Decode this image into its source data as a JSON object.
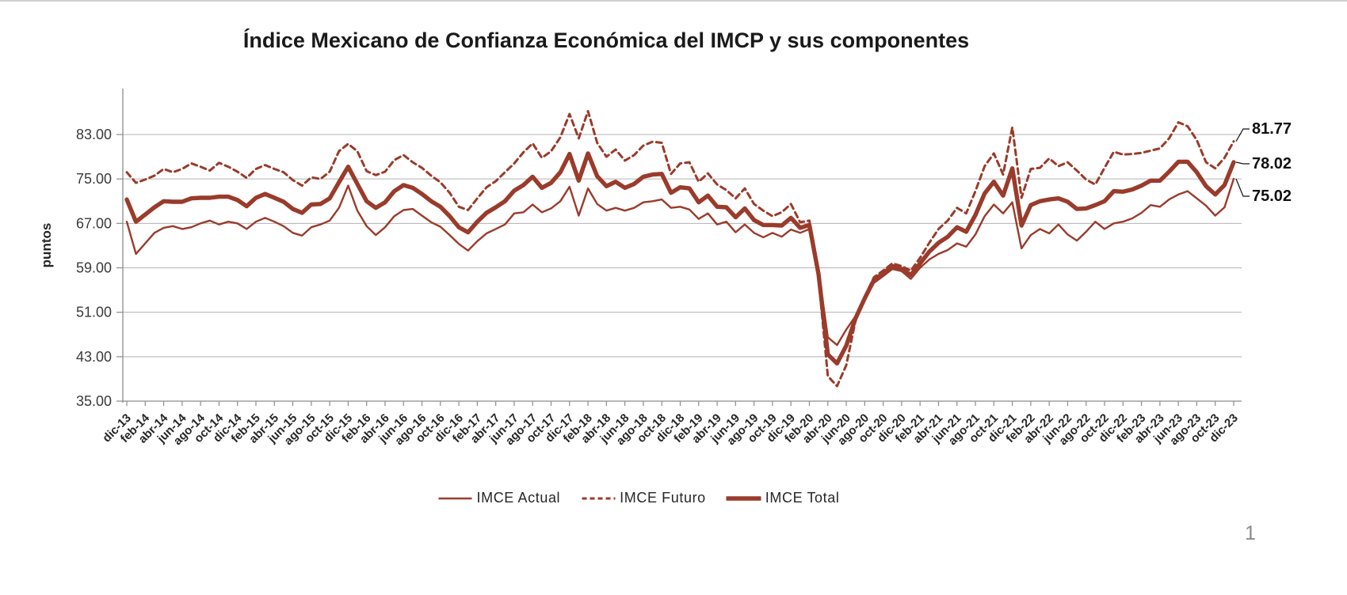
{
  "slide": {
    "page_number": "1"
  },
  "chart_data": {
    "type": "line",
    "title": "Índice Mexicano de Confianza Económica del IMCP y sus componentes",
    "ylabel": "puntos",
    "ylim": [
      35,
      83
    ],
    "yticks": [
      35,
      43,
      51,
      59,
      67,
      75,
      83
    ],
    "ytick_labels": [
      "35.00",
      "43.00",
      "51.00",
      "59.00",
      "67.00",
      "75.00",
      "83.00"
    ],
    "grid": true,
    "legend_position": "bottom",
    "color": "#9A3B2B",
    "xtick_every": 2,
    "categories": [
      "dic-13",
      "ene-14",
      "feb-14",
      "mar-14",
      "abr-14",
      "may-14",
      "jun-14",
      "jul-14",
      "ago-14",
      "sep-14",
      "oct-14",
      "nov-14",
      "dic-14",
      "ene-15",
      "feb-15",
      "mar-15",
      "abr-15",
      "may-15",
      "jun-15",
      "jul-15",
      "ago-15",
      "sep-15",
      "oct-15",
      "nov-15",
      "dic-15",
      "ene-16",
      "feb-16",
      "mar-16",
      "abr-16",
      "may-16",
      "jun-16",
      "jul-16",
      "ago-16",
      "sep-16",
      "oct-16",
      "nov-16",
      "dic-16",
      "ene-17",
      "feb-17",
      "mar-17",
      "abr-17",
      "may-17",
      "jun-17",
      "jul-17",
      "ago-17",
      "sep-17",
      "oct-17",
      "nov-17",
      "dic-17",
      "ene-18",
      "feb-18",
      "mar-18",
      "abr-18",
      "may-18",
      "jun-18",
      "jul-18",
      "ago-18",
      "sep-18",
      "oct-18",
      "nov-18",
      "dic-18",
      "ene-19",
      "feb-19",
      "mar-19",
      "abr-19",
      "may-19",
      "jun-19",
      "jul-19",
      "ago-19",
      "sep-19",
      "oct-19",
      "nov-19",
      "dic-19",
      "ene-20",
      "feb-20",
      "mar-20",
      "abr-20",
      "may-20",
      "jun-20",
      "jul-20",
      "ago-20",
      "sep-20",
      "oct-20",
      "nov-20",
      "dic-20",
      "ene-21",
      "feb-21",
      "mar-21",
      "abr-21",
      "may-21",
      "jun-21",
      "jul-21",
      "ago-21",
      "sep-21",
      "oct-21",
      "nov-21",
      "dic-21",
      "ene-22",
      "feb-22",
      "mar-22",
      "abr-22",
      "may-22",
      "jun-22",
      "jul-22",
      "ago-22",
      "sep-22",
      "oct-22",
      "nov-22",
      "dic-22",
      "ene-23",
      "feb-23",
      "mar-23",
      "abr-23",
      "may-23",
      "jun-23",
      "jul-23",
      "ago-23",
      "sep-23",
      "oct-23",
      "nov-23",
      "dic-23"
    ],
    "series": [
      {
        "name": "IMCE Actual",
        "style": "thin",
        "values": [
          67.3,
          61.5,
          63.4,
          65.3,
          66.2,
          66.5,
          66.0,
          66.3,
          67.0,
          67.5,
          66.8,
          67.3,
          67.0,
          66.0,
          67.3,
          68.0,
          67.3,
          66.5,
          65.3,
          64.8,
          66.3,
          66.8,
          67.5,
          69.8,
          73.8,
          69.3,
          66.5,
          64.9,
          66.3,
          68.3,
          69.4,
          69.6,
          68.4,
          67.2,
          66.4,
          64.9,
          63.3,
          62.1,
          63.8,
          65.2,
          66.0,
          66.8,
          68.8,
          69.0,
          70.4,
          69.0,
          69.7,
          71.0,
          73.6,
          68.4,
          73.3,
          70.5,
          69.3,
          69.8,
          69.3,
          69.8,
          70.8,
          71.0,
          71.3,
          69.8,
          70.0,
          69.5,
          67.8,
          68.8,
          66.8,
          67.3,
          65.4,
          66.8,
          65.3,
          64.5,
          65.3,
          64.6,
          65.9,
          65.3,
          66.0,
          58.5,
          46.5,
          45.1,
          47.9,
          50.3,
          53.2,
          56.3,
          57.5,
          58.8,
          58.4,
          57.0,
          59.0,
          60.5,
          61.5,
          62.2,
          63.4,
          62.8,
          65.0,
          68.3,
          70.4,
          68.8,
          70.8,
          62.5,
          64.9,
          66.0,
          65.2,
          66.8,
          65.0,
          63.9,
          65.5,
          67.3,
          66.0,
          67.0,
          67.3,
          67.9,
          68.9,
          70.3,
          70.0,
          71.3,
          72.2,
          72.8,
          71.5,
          70.2,
          68.4,
          69.9,
          75.02
        ]
      },
      {
        "name": "IMCE Futuro",
        "style": "dashed",
        "values": [
          76.2,
          74.3,
          74.9,
          75.6,
          76.8,
          76.2,
          76.8,
          77.8,
          77.2,
          76.5,
          77.9,
          77.2,
          76.3,
          75.2,
          76.8,
          77.5,
          76.8,
          76.2,
          74.8,
          73.8,
          75.3,
          75.0,
          76.3,
          80.0,
          81.3,
          80.0,
          76.4,
          75.7,
          76.3,
          78.4,
          79.3,
          78.0,
          77.0,
          75.6,
          74.4,
          72.5,
          70.0,
          69.4,
          71.5,
          73.5,
          74.6,
          76.2,
          77.8,
          79.8,
          81.4,
          78.8,
          80.0,
          82.5,
          86.7,
          82.3,
          87.2,
          81.5,
          79.0,
          80.3,
          78.3,
          79.3,
          81.0,
          81.7,
          81.5,
          75.9,
          77.8,
          78.0,
          74.5,
          76.0,
          74.0,
          73.0,
          71.5,
          73.3,
          70.5,
          69.3,
          68.3,
          69.0,
          70.5,
          67.2,
          67.5,
          57.0,
          39.5,
          37.7,
          41.5,
          49.5,
          53.8,
          57.3,
          58.5,
          59.8,
          59.3,
          58.5,
          60.8,
          63.5,
          66.0,
          67.5,
          69.8,
          68.8,
          72.8,
          77.3,
          79.6,
          75.8,
          84.3,
          71.6,
          76.8,
          77.0,
          78.7,
          77.3,
          78.0,
          76.5,
          74.9,
          74.0,
          77.0,
          79.9,
          79.4,
          79.5,
          79.7,
          80.1,
          80.5,
          82.3,
          85.2,
          84.5,
          82.0,
          78.0,
          76.9,
          78.8,
          81.77
        ]
      },
      {
        "name": "IMCE Total",
        "style": "thick",
        "values": [
          71.3,
          67.3,
          68.6,
          69.9,
          71.0,
          70.9,
          70.9,
          71.5,
          71.6,
          71.6,
          71.8,
          71.8,
          71.2,
          70.1,
          71.6,
          72.3,
          71.6,
          70.9,
          69.6,
          68.9,
          70.4,
          70.5,
          71.5,
          74.4,
          77.2,
          74.1,
          71.0,
          69.8,
          70.8,
          72.8,
          73.9,
          73.4,
          72.3,
          71.0,
          70.0,
          68.3,
          66.3,
          65.4,
          67.3,
          68.9,
          69.9,
          71.0,
          72.9,
          73.9,
          75.4,
          73.4,
          74.3,
          76.2,
          79.5,
          74.7,
          79.6,
          75.5,
          73.7,
          74.5,
          73.4,
          74.1,
          75.4,
          75.8,
          75.9,
          72.5,
          73.5,
          73.3,
          70.8,
          72.0,
          70.0,
          69.9,
          68.1,
          69.7,
          67.6,
          66.7,
          66.7,
          66.6,
          68.0,
          66.2,
          66.7,
          57.8,
          43.4,
          41.8,
          45.0,
          49.9,
          53.5,
          56.8,
          58.0,
          59.3,
          58.8,
          57.7,
          59.8,
          61.9,
          63.5,
          64.6,
          66.3,
          65.5,
          68.5,
          72.4,
          74.5,
          72.0,
          76.9,
          66.6,
          70.3,
          71.0,
          71.3,
          71.5,
          70.9,
          69.6,
          69.7,
          70.3,
          71.0,
          72.8,
          72.7,
          73.1,
          73.8,
          74.7,
          74.7,
          76.3,
          78.1,
          78.1,
          76.2,
          73.7,
          72.2,
          73.9,
          78.02
        ]
      }
    ],
    "end_labels": [
      {
        "series": "IMCE Futuro",
        "text": "81.77"
      },
      {
        "series": "IMCE Total",
        "text": "78.02"
      },
      {
        "series": "IMCE Actual",
        "text": "75.02"
      }
    ]
  }
}
